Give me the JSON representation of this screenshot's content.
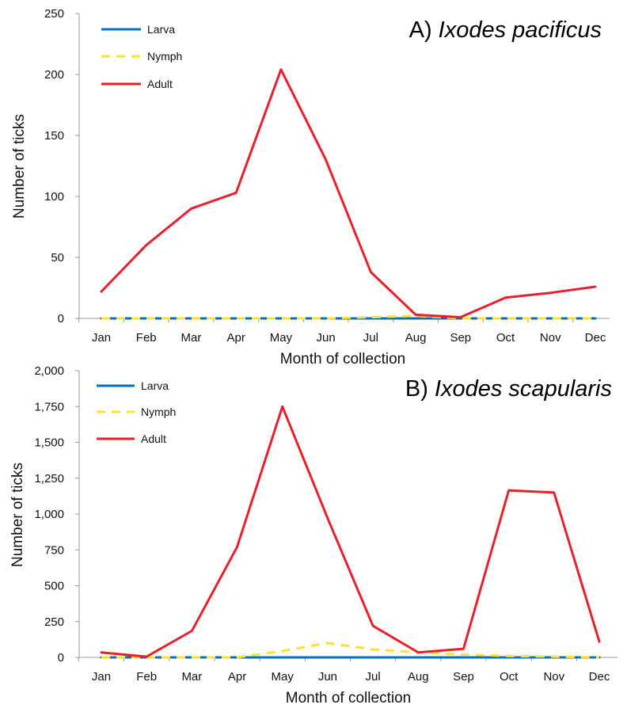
{
  "chart_data": [
    {
      "type": "line",
      "title_label": "A)",
      "title_species": "Ixodes pacificus",
      "xlabel": "Month of collection",
      "ylabel": "Number of ticks",
      "ylim": [
        0,
        250
      ],
      "yticks": [
        "0",
        "50",
        "100",
        "150",
        "200",
        "250"
      ],
      "categories": [
        "Jan",
        "Feb",
        "Mar",
        "Apr",
        "May",
        "Jun",
        "Jul",
        "Aug",
        "Sep",
        "Oct",
        "Nov",
        "Dec"
      ],
      "legend_position": "top-left",
      "grid": false,
      "series": [
        {
          "name": "Larva",
          "color": "#0070C0",
          "dash": "solid",
          "values": [
            0,
            0,
            0,
            0,
            0,
            0,
            0,
            0,
            0,
            0,
            0,
            0
          ]
        },
        {
          "name": "Nymph",
          "color": "#FFE033",
          "dash": "dashed",
          "values": [
            0,
            0,
            0,
            0,
            0,
            0,
            1,
            2,
            0,
            0,
            0,
            0
          ]
        },
        {
          "name": "Adult",
          "color": "#E8202A",
          "dash": "solid",
          "values": [
            22,
            60,
            90,
            103,
            204,
            130,
            38,
            3,
            1,
            17,
            21,
            26
          ]
        }
      ]
    },
    {
      "type": "line",
      "title_label": "B)",
      "title_species": "Ixodes scapularis",
      "xlabel": "Month of collection",
      "ylabel": "Number of ticks",
      "ylim": [
        0,
        2000
      ],
      "yticks": [
        "0",
        "250",
        "500",
        "750",
        "1,000",
        "1,250",
        "1,500",
        "1,750",
        "2,000"
      ],
      "categories": [
        "Jan",
        "Feb",
        "Mar",
        "Apr",
        "May",
        "Jun",
        "Jul",
        "Aug",
        "Sep",
        "Oct",
        "Nov",
        "Dec"
      ],
      "legend_position": "top-left",
      "grid": false,
      "series": [
        {
          "name": "Larva",
          "color": "#0070C0",
          "dash": "solid",
          "values": [
            0,
            0,
            0,
            0,
            0,
            0,
            0,
            0,
            0,
            0,
            0,
            0
          ]
        },
        {
          "name": "Nymph",
          "color": "#FFE033",
          "dash": "dashed",
          "values": [
            0,
            0,
            0,
            0,
            45,
            100,
            55,
            35,
            20,
            10,
            5,
            0
          ]
        },
        {
          "name": "Adult",
          "color": "#E8202A",
          "dash": "solid",
          "values": [
            35,
            5,
            185,
            770,
            1750,
            970,
            220,
            35,
            60,
            1165,
            1150,
            110
          ]
        }
      ]
    }
  ]
}
